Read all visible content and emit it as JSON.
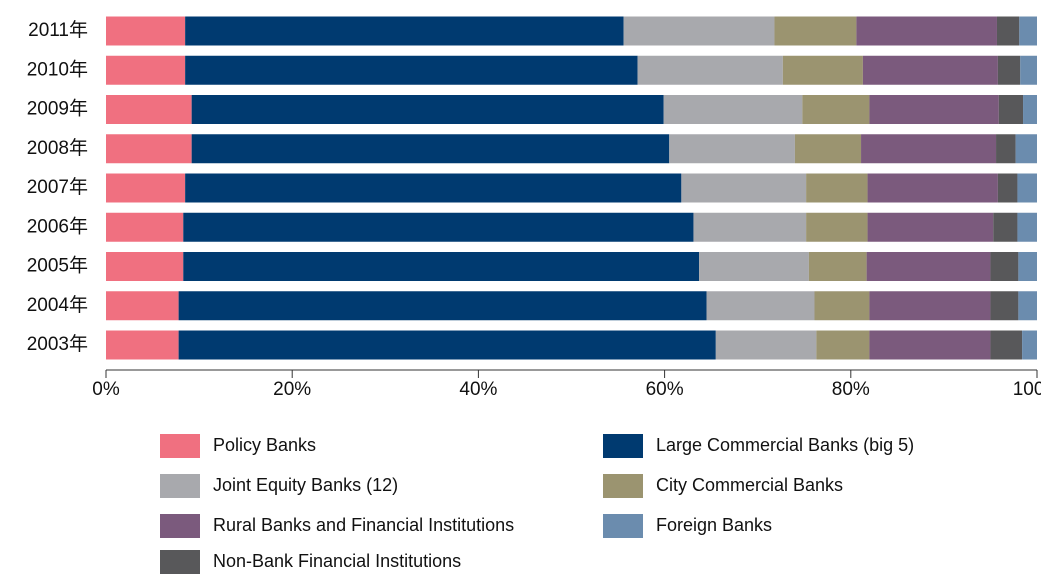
{
  "chart_data": {
    "type": "stacked_bar_horizontal",
    "categories": [
      "2011年",
      "2010年",
      "2009年",
      "2008年",
      "2007年",
      "2006年",
      "2005年",
      "2004年",
      "2003年"
    ],
    "series": [
      {
        "name": "Policy Banks",
        "color": "#f07080",
        "values": [
          8.5,
          8.5,
          9.2,
          9.2,
          8.5,
          8.3,
          8.3,
          7.8,
          7.8
        ]
      },
      {
        "name": "Large Commercial Banks (big 5)",
        "color": "#003a70",
        "values": [
          47.1,
          48.6,
          50.7,
          51.3,
          53.3,
          54.8,
          55.4,
          56.7,
          57.7
        ]
      },
      {
        "name": "Joint Equity Banks (12)",
        "color": "#a8a9ad",
        "values": [
          16.2,
          15.6,
          14.9,
          13.5,
          13.4,
          12.1,
          11.8,
          11.6,
          10.8
        ]
      },
      {
        "name": "City Commercial Banks",
        "color": "#9b9470",
        "values": [
          8.8,
          8.6,
          7.2,
          7.1,
          6.6,
          6.6,
          6.2,
          5.9,
          5.7
        ]
      },
      {
        "name": "Rural Banks and Financial Institutions",
        "color": "#7b5a7d",
        "values": [
          15.1,
          14.5,
          13.9,
          14.5,
          14.0,
          13.5,
          13.3,
          13.0,
          13.0
        ]
      },
      {
        "name": "Non-Bank Financial Institutions",
        "color": "#58585a",
        "values": [
          2.4,
          2.4,
          2.6,
          2.1,
          2.1,
          2.6,
          3.0,
          3.0,
          3.4
        ]
      },
      {
        "name": "Foreign Banks",
        "color": "#6b8cae",
        "values": [
          1.9,
          1.8,
          1.5,
          2.3,
          2.1,
          2.1,
          2.0,
          2.0,
          1.6
        ]
      }
    ],
    "xlim": [
      0,
      100
    ],
    "xticks": [
      {
        "value": 0,
        "label": "0%"
      },
      {
        "value": 20,
        "label": "20%"
      },
      {
        "value": 40,
        "label": "40%"
      },
      {
        "value": 60,
        "label": "60%"
      },
      {
        "value": 80,
        "label": "80%"
      },
      {
        "value": 100,
        "label": "100%"
      }
    ]
  }
}
